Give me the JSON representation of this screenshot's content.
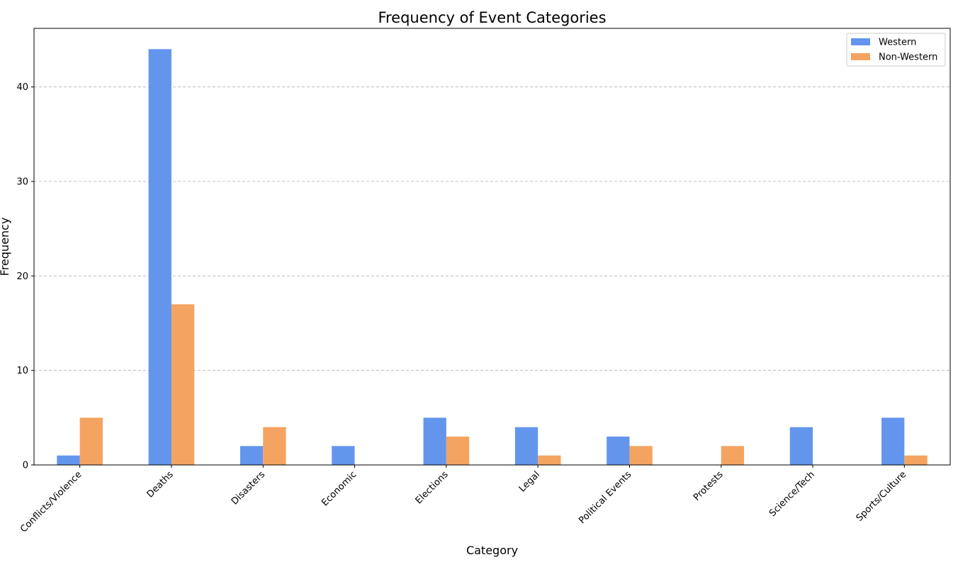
{
  "chart_data": {
    "type": "bar",
    "title": "Frequency of Event Categories",
    "xlabel": "Category",
    "ylabel": "Frequency",
    "categories": [
      "Conflicts/Violence",
      "Deaths",
      "Disasters",
      "Economic",
      "Elections",
      "Legal",
      "Political Events",
      "Protests",
      "Science/Tech",
      "Sports/Culture"
    ],
    "series": [
      {
        "name": "Western",
        "color": "#6495ED",
        "values": [
          1,
          44,
          2,
          2,
          5,
          4,
          3,
          0,
          4,
          5
        ]
      },
      {
        "name": "Non-Western",
        "color": "#F4A460",
        "values": [
          5,
          17,
          4,
          0,
          3,
          1,
          2,
          2,
          0,
          1
        ]
      }
    ],
    "ylim": [
      0,
      46.2
    ],
    "yticks": [
      0,
      10,
      20,
      30,
      40
    ],
    "grid": "y-dashed",
    "legend_position": "top-right"
  }
}
